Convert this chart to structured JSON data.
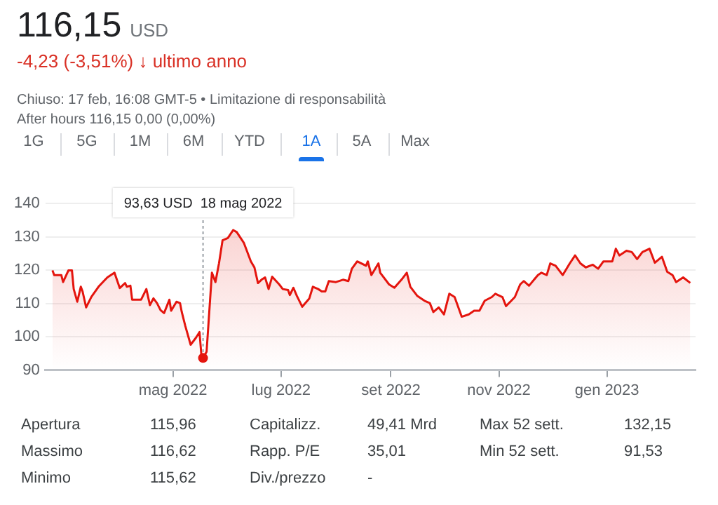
{
  "chart_data": {
    "type": "area",
    "title": "116,15",
    "subtitle": "-4,23 (-3,51%) ↓ ultimo anno",
    "annotations": [
      "USD",
      "Chiuso: 17 feb, 16:08 GMT-5 • Limitazione di responsabilità",
      "After hours 116,15 0,00 (0,00%)",
      "1G",
      "5G",
      "1M",
      "6M",
      "YTD",
      "1A",
      "5A",
      "Max",
      {
        "text": "93,63 USD  18 mag 2022",
        "x": "2022-05-18",
        "y": 93.63
      },
      "Apertura",
      "115,96",
      "Capitalizz.",
      "49,41 Mrd",
      "Max 52 sett.",
      "132,15",
      "Massimo",
      "116,62",
      "Rapp. P/E",
      "35,01",
      "Min 52 sett.",
      "91,53",
      "Minimo",
      "115,62",
      "Div./prezzo",
      "-"
    ],
    "x": [
      "2022-02-22",
      "2022-02-23",
      "2022-02-27",
      "2022-02-28",
      "2022-03-03",
      "2022-03-05",
      "2022-03-06",
      "2022-03-08",
      "2022-03-10",
      "2022-03-11",
      "2022-03-13",
      "2022-03-16",
      "2022-03-20",
      "2022-03-23",
      "2022-03-25",
      "2022-03-29",
      "2022-04-01",
      "2022-04-04",
      "2022-04-05",
      "2022-04-07",
      "2022-04-08",
      "2022-04-13",
      "2022-04-16",
      "2022-04-18",
      "2022-04-20",
      "2022-04-22",
      "2022-04-24",
      "2022-04-26",
      "2022-04-29",
      "2022-04-30",
      "2022-05-03",
      "2022-05-05",
      "2022-05-06",
      "2022-05-08",
      "2022-05-11",
      "2022-05-14",
      "2022-05-16",
      "2022-05-17",
      "2022-05-18",
      "2022-05-20",
      "2022-05-23",
      "2022-05-25",
      "2022-05-27",
      "2022-05-29",
      "2022-06-01",
      "2022-06-04",
      "2022-06-06",
      "2022-06-10",
      "2022-06-14",
      "2022-06-16",
      "2022-06-18",
      "2022-06-20",
      "2022-06-22",
      "2022-06-24",
      "2022-06-26",
      "2022-06-30",
      "2022-07-02",
      "2022-07-05",
      "2022-07-06",
      "2022-07-08",
      "2022-07-10",
      "2022-07-13",
      "2022-07-17",
      "2022-07-19",
      "2022-07-22",
      "2022-07-24",
      "2022-07-26",
      "2022-07-28",
      "2022-08-01",
      "2022-08-05",
      "2022-08-08",
      "2022-08-10",
      "2022-08-13",
      "2022-08-18",
      "2022-08-19",
      "2022-08-21",
      "2022-08-25",
      "2022-08-26",
      "2022-08-31",
      "2022-09-03",
      "2022-09-07",
      "2022-09-10",
      "2022-09-12",
      "2022-09-16",
      "2022-09-20",
      "2022-09-23",
      "2022-09-25",
      "2022-09-28",
      "2022-10-01",
      "2022-10-04",
      "2022-10-07",
      "2022-10-11",
      "2022-10-15",
      "2022-10-18",
      "2022-10-21",
      "2022-10-24",
      "2022-10-28",
      "2022-10-30",
      "2022-11-03",
      "2022-11-05",
      "2022-11-08",
      "2022-11-10",
      "2022-11-13",
      "2022-11-15",
      "2022-11-18",
      "2022-11-23",
      "2022-11-25",
      "2022-11-28",
      "2022-11-30",
      "2022-12-03",
      "2022-12-07",
      "2022-12-11",
      "2022-12-14",
      "2022-12-17",
      "2022-12-20",
      "2022-12-24",
      "2022-12-27",
      "2022-12-30",
      "2023-01-04",
      "2023-01-06",
      "2023-01-08",
      "2023-01-12",
      "2023-01-15",
      "2023-01-18",
      "2023-01-21",
      "2023-01-25",
      "2023-01-28",
      "2023-02-01",
      "2023-02-04",
      "2023-02-07",
      "2023-02-09",
      "2023-02-13",
      "2023-02-17"
    ],
    "series": [
      {
        "color": "#e4150e",
        "values": [
          119.9,
          118.5,
          118.5,
          116.4,
          119.9,
          119.9,
          114.3,
          110.5,
          115,
          113.6,
          108.8,
          112,
          115,
          116.7,
          117.8,
          119.2,
          114.6,
          116.1,
          115,
          115.3,
          111.1,
          111.1,
          114.3,
          109.5,
          111.5,
          110.1,
          108,
          107.1,
          111.1,
          107.8,
          110.5,
          110.1,
          107.4,
          103.2,
          97.6,
          99.7,
          101.4,
          94.9,
          93.63,
          95.5,
          119.2,
          116.4,
          122,
          128.9,
          129.6,
          132,
          131.4,
          128.2,
          122.6,
          120.8,
          116.1,
          117.1,
          117.8,
          114.3,
          118,
          115.7,
          114.3,
          114,
          112.5,
          114.7,
          112.2,
          109,
          111.5,
          115,
          114.3,
          113.6,
          113.6,
          116.7,
          116.4,
          117.1,
          116.7,
          120.4,
          122.6,
          121.3,
          122.6,
          118.5,
          122,
          119.2,
          115.7,
          114.7,
          117.1,
          119.2,
          115,
          112.2,
          110.8,
          110.1,
          107.4,
          108.8,
          106.7,
          112.9,
          111.9,
          106,
          106.7,
          107.8,
          107.8,
          110.8,
          111.9,
          112.9,
          111.9,
          109.2,
          110.8,
          111.9,
          115.7,
          116.7,
          115.3,
          118.5,
          119.2,
          118.5,
          122,
          121.3,
          118.5,
          122,
          124.4,
          122,
          120.8,
          121.6,
          120.4,
          122.6,
          122.6,
          126.4,
          124.4,
          125.8,
          125.4,
          123.3,
          125.4,
          126.4,
          122.2,
          124,
          119.5,
          118.5,
          116.4,
          117.8,
          116.15
        ]
      }
    ],
    "xlim": [
      "2022-02-18",
      "2023-02-20"
    ],
    "xticks": [
      {
        "value": "2022-05-01",
        "label": "mag 2022"
      },
      {
        "value": "2022-07-01",
        "label": "lug 2022"
      },
      {
        "value": "2022-09-01",
        "label": "set 2022"
      },
      {
        "value": "2022-11-01",
        "label": "nov 2022"
      },
      {
        "value": "2023-01-01",
        "label": "gen 2023"
      }
    ],
    "ylim": [
      90,
      140
    ],
    "yticks": [
      90,
      100,
      110,
      120,
      130,
      140
    ],
    "grid": "y"
  }
}
